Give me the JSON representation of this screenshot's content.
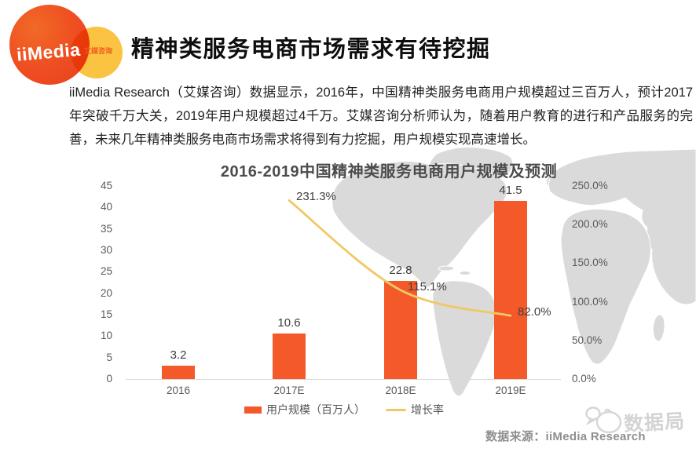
{
  "logo": {
    "brand": "iiMedia",
    "tagline": "艾媒咨询"
  },
  "page_title": "精神类服务电商市场需求有待挖掘",
  "intro_text": "iiMedia Research（艾媒咨询）数据显示，2016年，中国精神类服务电商用户规模超过三百万人，预计2017年突破千万大关，2019年用户规模超过4千万。艾媒咨询分析师认为，随着用户教育的进行和产品服务的完善，未来几年精神类服务电商市场需求将得到有力挖掘，用户规模实现高速增长。",
  "chart_data": {
    "type": "bar",
    "title": "2016-2019中国精神类服务电商用户规模及预测",
    "categories": [
      "2016",
      "2017E",
      "2018E",
      "2019E"
    ],
    "series": [
      {
        "name": "用户规模（百万人）",
        "type": "bar",
        "values": [
          3.2,
          10.6,
          22.8,
          41.5
        ],
        "color": "#F4592A"
      },
      {
        "name": "增长率",
        "type": "line",
        "values": [
          null,
          231.3,
          115.1,
          82.0
        ],
        "value_labels": [
          null,
          "231.3%",
          "115.1%",
          "82.0%"
        ],
        "color": "#F0C863"
      }
    ],
    "left_axis": {
      "tick_labels": [
        "45",
        "40",
        "35",
        "30",
        "25",
        "20",
        "15",
        "10",
        "5",
        "0"
      ],
      "min": 0,
      "max": 45
    },
    "right_axis": {
      "tick_labels": [
        "250.0%",
        "200.0%",
        "150.0%",
        "100.0%",
        "50.0%",
        "0.0%"
      ],
      "min": 0,
      "max": 250
    },
    "legend_position": "bottom",
    "grid": false
  },
  "footer": {
    "source_text": "数据来源：iiMedia Research",
    "watermark_text": "数据局"
  }
}
